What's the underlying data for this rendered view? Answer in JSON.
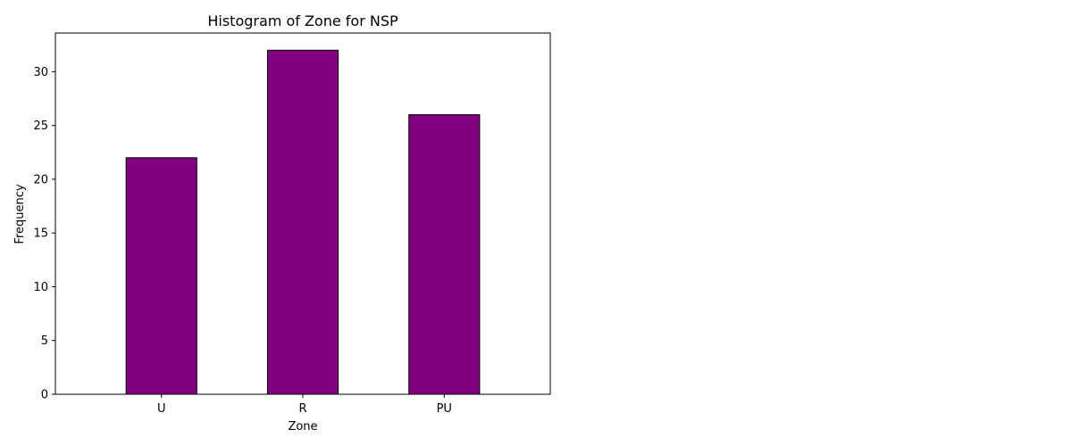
{
  "chart_data": {
    "type": "bar",
    "title": "Histogram of Zone for NSP",
    "xlabel": "Zone",
    "ylabel": "Frequency",
    "categories": [
      "U",
      "R",
      "PU"
    ],
    "values": [
      22,
      32,
      26
    ],
    "ylim": [
      0,
      33.6
    ],
    "yticks": [
      0,
      5,
      10,
      15,
      20,
      25,
      30
    ],
    "grid": false,
    "legend": "none",
    "bar_color": "#800080",
    "edge_color": "#000000"
  }
}
